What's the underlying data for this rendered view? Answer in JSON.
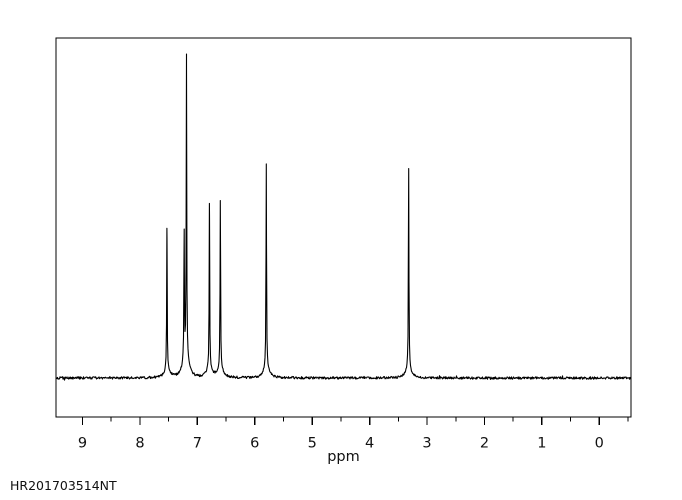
{
  "figure": {
    "id_label": "HR201703514NT",
    "background_color": "#ffffff",
    "trace_color": "#000000",
    "frame_color": "#000000"
  },
  "chart_data": {
    "type": "line",
    "title": "",
    "xlabel": "ppm",
    "ylabel": "",
    "x_axis_inverted": true,
    "xlim": [
      9.47,
      -0.55
    ],
    "x_major_ticks": [
      9,
      8,
      7,
      6,
      5,
      4,
      3,
      2,
      1,
      0
    ],
    "x_minor_tick_step": 0.5,
    "grid": false,
    "legend": false,
    "line_color": "#000000",
    "baseline_relative_intensity": 0,
    "peaks": [
      {
        "ppm": 7.53,
        "relative_intensity": 0.47
      },
      {
        "ppm": 7.23,
        "relative_intensity": 0.42
      },
      {
        "ppm": 7.19,
        "relative_intensity": 1.0
      },
      {
        "ppm": 6.79,
        "relative_intensity": 0.55
      },
      {
        "ppm": 6.6,
        "relative_intensity": 0.56
      },
      {
        "ppm": 5.8,
        "relative_intensity": 0.68
      },
      {
        "ppm": 3.32,
        "relative_intensity": 0.66
      }
    ]
  }
}
